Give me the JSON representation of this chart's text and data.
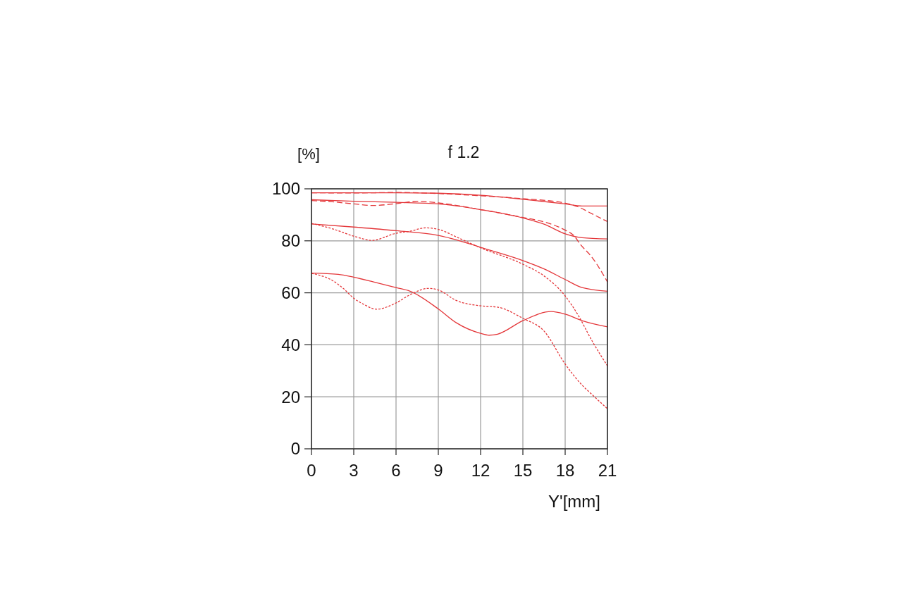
{
  "chart_data": {
    "type": "line",
    "title": "f 1.2",
    "ylabel": "[%]",
    "xlabel": "Y'[mm]",
    "xlim": [
      0,
      21
    ],
    "xticks": [
      0,
      3,
      6,
      9,
      12,
      15,
      18,
      21
    ],
    "ylim": [
      0,
      100
    ],
    "yticks": [
      0,
      20,
      40,
      60,
      80,
      100
    ],
    "grid": true,
    "marker": "none",
    "series": [
      {
        "color": "#e4373a",
        "line_style": "solid",
        "x": [
          0,
          3,
          6,
          9,
          12,
          15,
          18,
          19.2,
          21
        ],
        "values": [
          98.5,
          98.5,
          98.5,
          98.3,
          97.5,
          96.0,
          94.2,
          93.4,
          93.4
        ]
      },
      {
        "color": "#e4373a",
        "line_style": "dashed",
        "x": [
          0,
          3,
          6,
          9,
          12,
          15,
          18,
          18.9,
          19.9,
          21
        ],
        "values": [
          98.5,
          98.4,
          98.6,
          98.2,
          97.3,
          96.2,
          94.5,
          93.1,
          90.4,
          87.4
        ]
      },
      {
        "color": "#e4373a",
        "line_style": "solid",
        "x": [
          0,
          3,
          6,
          9,
          12,
          15,
          16.5,
          18,
          19.2,
          21
        ],
        "values": [
          95.8,
          95.2,
          94.8,
          94.2,
          92.0,
          88.8,
          86.4,
          82.7,
          81.2,
          80.7
        ]
      },
      {
        "color": "#e4373a",
        "line_style": "dashed",
        "x": [
          0,
          1.5,
          3,
          4.4,
          6,
          7.5,
          9,
          12,
          15,
          16.5,
          18,
          18.6,
          19.1,
          19.9,
          21
        ],
        "values": [
          95.5,
          95.0,
          94.2,
          93.6,
          94.3,
          95.2,
          94.6,
          92.0,
          89.0,
          87.3,
          84.1,
          82.1,
          78.5,
          73.7,
          64.2
        ]
      },
      {
        "color": "#e4373a",
        "line_style": "solid",
        "x": [
          0,
          3,
          6,
          9,
          10.4,
          12,
          15,
          16.5,
          18,
          19.2,
          21
        ],
        "values": [
          86.5,
          85.3,
          83.9,
          82.1,
          80.2,
          77.5,
          72.4,
          69.2,
          65.1,
          62.0,
          60.6
        ]
      },
      {
        "color": "#e4373a",
        "line_style": "dotted",
        "x": [
          0,
          1.5,
          3,
          4.3,
          6,
          7,
          8.1,
          9,
          10.4,
          12,
          15,
          16.5,
          18,
          18.9,
          19.9,
          21
        ],
        "values": [
          86.7,
          84.6,
          81.8,
          80.2,
          82.9,
          83.7,
          85.0,
          84.4,
          81.2,
          77.3,
          71.0,
          66.5,
          58.8,
          51.6,
          41.6,
          31.9
        ]
      },
      {
        "color": "#e4373a",
        "line_style": "solid",
        "x": [
          0,
          1.9,
          3,
          4.4,
          6,
          7,
          9,
          10.3,
          12,
          12.6,
          13.2,
          15,
          17,
          18,
          19.2,
          21
        ],
        "values": [
          67.6,
          67.1,
          66.0,
          64.2,
          62.0,
          60.6,
          53.8,
          48.4,
          44.4,
          43.7,
          44.1,
          49.3,
          52.8,
          51.8,
          49.3,
          46.9
        ]
      },
      {
        "color": "#e4373a",
        "line_style": "dotted",
        "x": [
          0,
          1.5,
          2.3,
          3,
          3.7,
          4.6,
          6,
          7,
          8.3,
          9,
          10.3,
          12,
          13.2,
          15,
          16.5,
          18,
          19.2,
          19.9,
          21
        ],
        "values": [
          67.5,
          64.7,
          61.5,
          57.9,
          55.6,
          53.7,
          56.1,
          59.3,
          61.7,
          61.1,
          57.0,
          55.0,
          54.5,
          50.2,
          45.3,
          32.6,
          24.5,
          20.9,
          15.4
        ]
      }
    ]
  }
}
